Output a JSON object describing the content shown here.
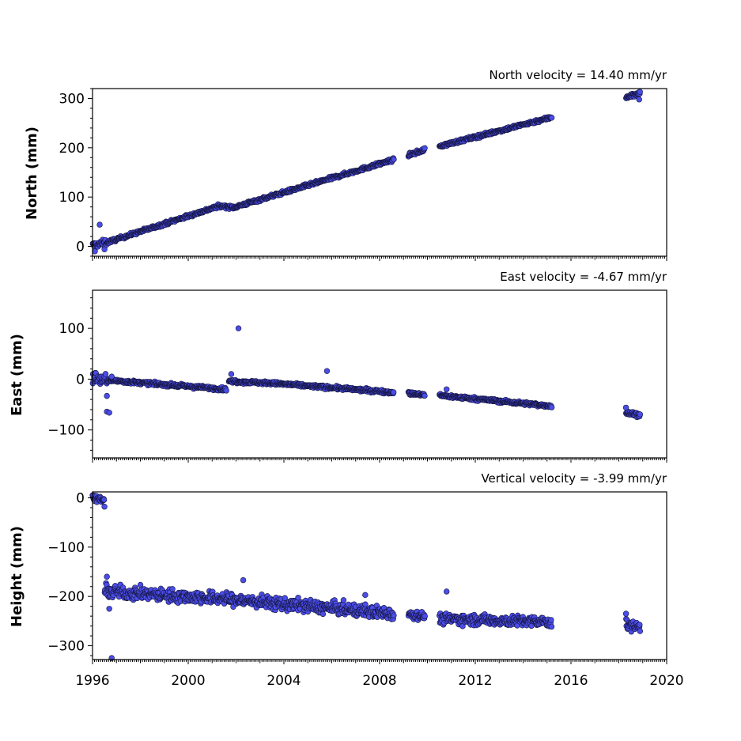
{
  "chart_data": [
    {
      "type": "scatter",
      "title": "North velocity = 14.40 mm/yr",
      "ylabel": "North (mm)",
      "xlim": [
        1996,
        2020
      ],
      "ylim": [
        -20,
        320
      ],
      "yticks": [
        0,
        100,
        200,
        300
      ],
      "ytick_labels": [
        "0",
        "100",
        "200",
        "300"
      ],
      "show_xtick_labels": false,
      "series": [
        {
          "segments": [
            {
              "x": [
                1996.0,
                1996.6
              ],
              "y": [
                2,
                8
              ],
              "spread": 6
            },
            {
              "x": [
                1996.6,
                2001.3
              ],
              "y": [
                8,
                82
              ],
              "spread": 3
            },
            {
              "x": [
                2001.3,
                2001.9
              ],
              "y": [
                82,
                79
              ],
              "spread": 3
            },
            {
              "x": [
                2001.9,
                2008.6
              ],
              "y": [
                79,
                176
              ],
              "spread": 3
            },
            {
              "x": [
                2009.2,
                2009.9
              ],
              "y": [
                185,
                196
              ],
              "spread": 3
            },
            {
              "x": [
                2010.5,
                2015.2
              ],
              "y": [
                203,
                262
              ],
              "spread": 3
            },
            {
              "x": [
                2018.3,
                2018.9
              ],
              "y": [
                303,
                310
              ],
              "spread": 4
            }
          ],
          "outliers": [
            {
              "x": 1996.3,
              "y": 44
            },
            {
              "x": 1996.1,
              "y": -10
            },
            {
              "x": 1996.5,
              "y": -6
            },
            {
              "x": 2018.85,
              "y": 298
            }
          ]
        }
      ]
    },
    {
      "type": "scatter",
      "title": "East velocity = -4.67 mm/yr",
      "ylabel": "East (mm)",
      "xlim": [
        1996,
        2020
      ],
      "ylim": [
        -155,
        175
      ],
      "yticks": [
        -100,
        0,
        100
      ],
      "ytick_labels": [
        "−100",
        "0",
        "100"
      ],
      "show_xtick_labels": false,
      "series": [
        {
          "segments": [
            {
              "x": [
                1996.0,
                1996.6
              ],
              "y": [
                5,
                -5
              ],
              "spread": 12
            },
            {
              "x": [
                1996.6,
                2001.6
              ],
              "y": [
                -2,
                -20
              ],
              "spread": 3
            },
            {
              "x": [
                2001.7,
                2003.5
              ],
              "y": [
                -4,
                -8
              ],
              "spread": 3
            },
            {
              "x": [
                2003.5,
                2008.6
              ],
              "y": [
                -8,
                -26
              ],
              "spread": 3
            },
            {
              "x": [
                2009.2,
                2009.9
              ],
              "y": [
                -28,
                -31
              ],
              "spread": 3
            },
            {
              "x": [
                2010.5,
                2015.2
              ],
              "y": [
                -32,
                -53
              ],
              "spread": 3
            },
            {
              "x": [
                2018.3,
                2018.9
              ],
              "y": [
                -67,
                -70
              ],
              "spread": 4
            }
          ],
          "outliers": [
            {
              "x": 2002.1,
              "y": 100
            },
            {
              "x": 2005.8,
              "y": 16
            },
            {
              "x": 2001.8,
              "y": 10
            },
            {
              "x": 1996.8,
              "y": 5
            },
            {
              "x": 1996.6,
              "y": -33
            },
            {
              "x": 1996.6,
              "y": -64
            },
            {
              "x": 1996.7,
              "y": -66
            },
            {
              "x": 2010.8,
              "y": -20
            },
            {
              "x": 2018.3,
              "y": -56
            }
          ]
        }
      ]
    },
    {
      "type": "scatter",
      "title": "Vertical velocity = -3.99 mm/yr",
      "ylabel": "Height (mm)",
      "xlim": [
        1996,
        2020
      ],
      "ylim": [
        -328,
        12
      ],
      "yticks": [
        -300,
        -200,
        -100,
        0
      ],
      "ytick_labels": [
        "−300",
        "−200",
        "−100",
        "0"
      ],
      "xticks": [
        1996,
        2000,
        2004,
        2008,
        2012,
        2016,
        2020
      ],
      "xtick_labels": [
        "1996",
        "2000",
        "2004",
        "2008",
        "2012",
        "2016",
        "2020"
      ],
      "show_xtick_labels": true,
      "series": [
        {
          "segments": [
            {
              "x": [
                1996.0,
                1996.5
              ],
              "y": [
                0,
                -5
              ],
              "spread": 6
            },
            {
              "x": [
                1996.5,
                2001.5
              ],
              "y": [
                -190,
                -205
              ],
              "spread": 12
            },
            {
              "x": [
                2001.5,
                2008.6
              ],
              "y": [
                -205,
                -235
              ],
              "spread": 12
            },
            {
              "x": [
                2009.2,
                2009.9
              ],
              "y": [
                -235,
                -240
              ],
              "spread": 8
            },
            {
              "x": [
                2010.5,
                2015.2
              ],
              "y": [
                -245,
                -252
              ],
              "spread": 10
            },
            {
              "x": [
                2018.3,
                2018.9
              ],
              "y": [
                -258,
                -262
              ],
              "spread": 10
            }
          ],
          "outliers": [
            {
              "x": 1996.6,
              "y": -160
            },
            {
              "x": 1996.7,
              "y": -225
            },
            {
              "x": 1996.5,
              "y": -18
            },
            {
              "x": 1996.8,
              "y": -325
            },
            {
              "x": 2010.8,
              "y": -190
            },
            {
              "x": 2002.3,
              "y": -167
            },
            {
              "x": 2007.4,
              "y": -197
            },
            {
              "x": 2018.3,
              "y": -235
            }
          ]
        }
      ]
    }
  ]
}
